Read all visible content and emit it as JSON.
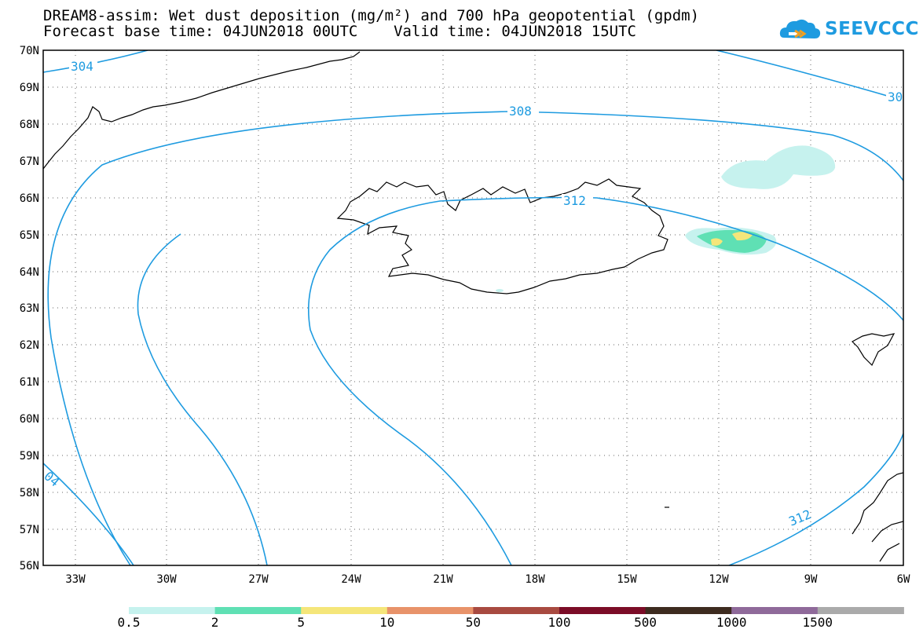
{
  "header": {
    "title_line1": "DREAM8-assim: Wet dust deposition (mg/m²) and 700 hPa geopotential (gpdm)",
    "title_line2": "Forecast base time: 04JUN2018 00UTC    Valid time: 04JUN2018 15UTC"
  },
  "logo": {
    "text": "SEEVCCC",
    "icon": "cloud-logo-icon",
    "color": "#1e9be0"
  },
  "map": {
    "lat_labels": [
      "70N",
      "69N",
      "68N",
      "67N",
      "66N",
      "65N",
      "64N",
      "63N",
      "62N",
      "61N",
      "60N",
      "59N",
      "58N",
      "57N",
      "56N"
    ],
    "lon_labels": [
      "33W",
      "30W",
      "27W",
      "24W",
      "21W",
      "18W",
      "15W",
      "12W",
      "9W",
      "6W"
    ],
    "contour_color": "#1e9be0",
    "contour_labels": [
      "304",
      "308",
      "312",
      "30",
      "04",
      "312"
    ]
  },
  "colorbar": {
    "colors": [
      "#c6f2ee",
      "#5fe0b4",
      "#f5e67a",
      "#e8936a",
      "#a84a40",
      "#7b0c27",
      "#3d2b1f",
      "#8f6a9a",
      "#aaaaaa"
    ],
    "labels": [
      "0.5",
      "2",
      "5",
      "10",
      "50",
      "100",
      "500",
      "1000",
      "1500"
    ]
  }
}
